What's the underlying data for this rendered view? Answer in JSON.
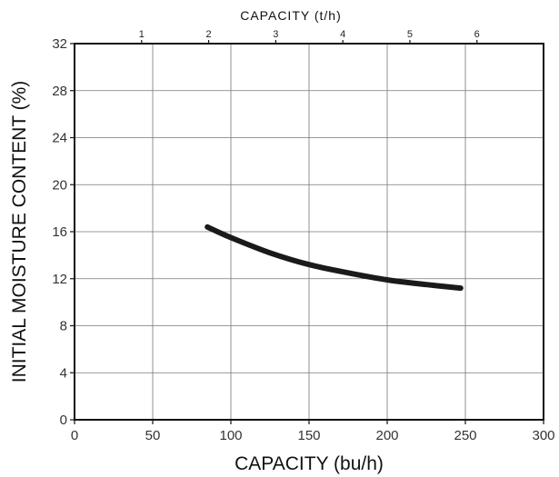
{
  "chart_data": {
    "type": "line",
    "xlabel": "CAPACITY (bu/h)",
    "ylabel": "INITIAL MOISTURE CONTENT (%)",
    "x2label": "CAPACITY (t/h)",
    "xlim": [
      0,
      300
    ],
    "ylim": [
      0,
      32
    ],
    "x_ticks": [
      0,
      50,
      100,
      150,
      200,
      250,
      300
    ],
    "y_ticks": [
      0,
      4,
      8,
      12,
      16,
      20,
      24,
      28,
      32
    ],
    "x2_ticks": [
      1,
      2,
      3,
      4,
      5,
      6
    ],
    "x2_tick_positions_bu_h": [
      42.9,
      85.8,
      128.7,
      171.6,
      214.5,
      257.4
    ],
    "grid": true,
    "series": [
      {
        "x": [
          85,
          100,
          125,
          150,
          175,
          200,
          225,
          247
        ],
        "y": [
          16.4,
          15.5,
          14.2,
          13.2,
          12.5,
          11.9,
          11.5,
          11.2
        ]
      }
    ]
  }
}
